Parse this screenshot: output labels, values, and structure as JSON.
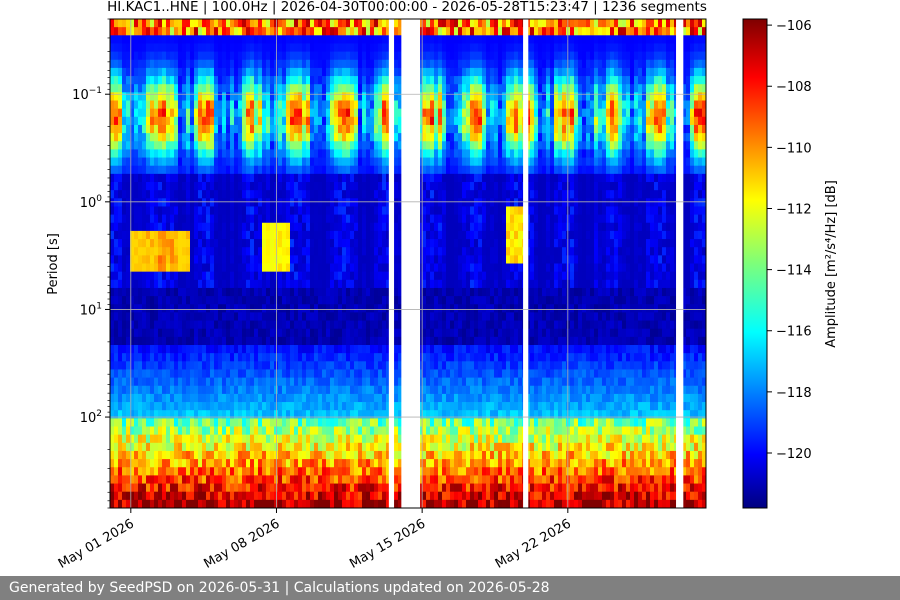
{
  "chart_data": {
    "type": "heatmap",
    "title": "HI.KAC1..HNE | 100.0Hz | 2026-04-30T00:00:00 - 2026-05-28T15:23:47 | 1236 segments",
    "ylabel": "Period [s]",
    "xlabel": "",
    "x_ticks": [
      {
        "label": "May 01 2026",
        "day": 1
      },
      {
        "label": "May 08 2026",
        "day": 8
      },
      {
        "label": "May 15 2026",
        "day": 15
      },
      {
        "label": "May 22 2026",
        "day": 22
      }
    ],
    "y_scale": "log",
    "y_inverted": true,
    "y_ticks": [
      {
        "base": "10",
        "exp": "−1",
        "value": 0.1
      },
      {
        "base": "10",
        "exp": "0",
        "value": 1
      },
      {
        "base": "10",
        "exp": "1",
        "value": 10
      },
      {
        "base": "10",
        "exp": "2",
        "value": 100
      }
    ],
    "ylim": [
      0.02,
      700
    ],
    "xlim_days": [
      0,
      28.64
    ],
    "grid": true,
    "data_gaps_days": [
      [
        13.4,
        13.65
      ],
      [
        14.0,
        14.9
      ],
      [
        19.85,
        20.1
      ],
      [
        27.2,
        27.55
      ]
    ],
    "colorbar": {
      "label": "Amplitude [m²/s⁴/Hz] [dB]",
      "ticks": [
        -106,
        -108,
        -110,
        -112,
        -114,
        -116,
        -118,
        -120
      ],
      "range": [
        -121.8,
        -105.8
      ],
      "colormap": "jet"
    }
  },
  "footer": {
    "text": "Generated by SeedPSD on 2026-05-31 | Calculations updated on 2026-05-28"
  }
}
